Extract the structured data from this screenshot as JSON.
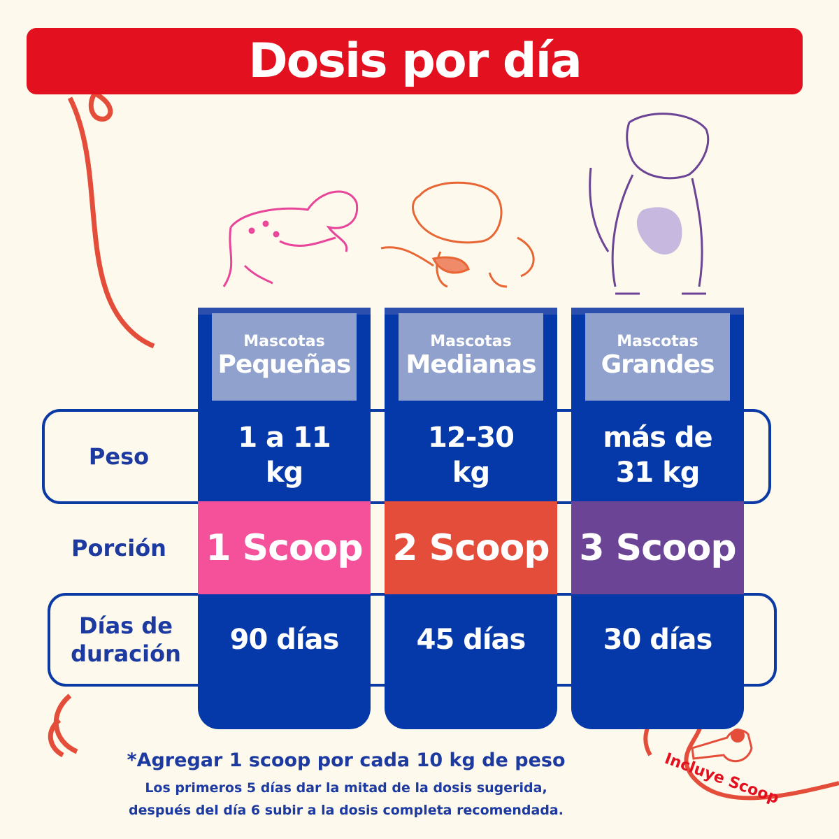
{
  "header": {
    "title": "Dosis por día"
  },
  "table": {
    "columns": [
      {
        "top": "Mascotas",
        "main": "Pequeñas"
      },
      {
        "top": "Mascotas",
        "main": "Medianas"
      },
      {
        "top": "Mascotas",
        "main": "Grandes"
      }
    ],
    "rows": [
      {
        "label": "Peso",
        "cells": [
          "1 a 11 kg",
          "12-30 kg",
          "más de 31 kg"
        ]
      },
      {
        "label": "Porción",
        "cells": [
          "1 Scoop",
          "2 Scoop",
          "3 Scoop"
        ]
      },
      {
        "label": "Días de duración",
        "cells": [
          "90 días",
          "45 días",
          "30 días"
        ]
      }
    ]
  },
  "footnote": {
    "main": "*Agregar 1 scoop por cada 10 kg de peso",
    "lines": [
      "Los primeros 5 días dar la mitad de la dosis sugerida,",
      "después del día 6 subir a la dosis completa recomendada."
    ]
  },
  "badge": "Incluye Scoop"
}
